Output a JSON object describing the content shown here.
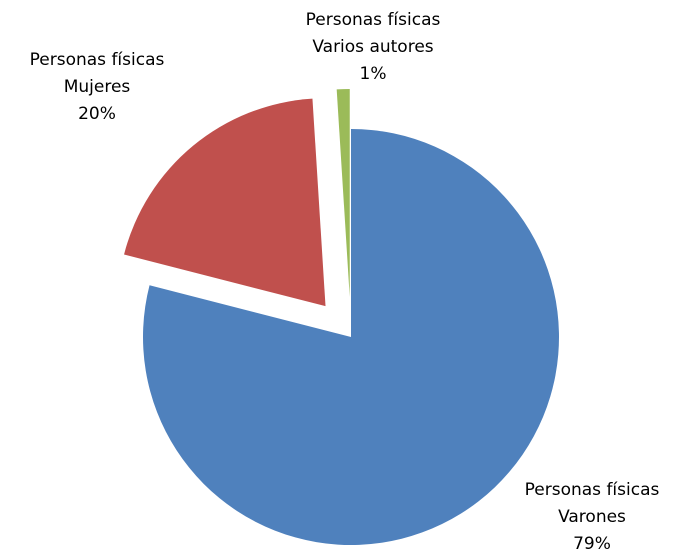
{
  "chart_data": {
    "type": "pie",
    "categories": [
      [
        "Personas físicas",
        "Varones"
      ],
      [
        "Personas físicas",
        "Mujeres"
      ],
      [
        "Personas físicas",
        "Varios autores"
      ]
    ],
    "values": [
      79,
      20,
      1
    ],
    "value_labels": [
      "79%",
      "20%",
      "1%"
    ],
    "colors": [
      "#4f81bd",
      "#c0504d",
      "#9bbb59"
    ],
    "exploded": [
      false,
      true,
      true
    ]
  }
}
